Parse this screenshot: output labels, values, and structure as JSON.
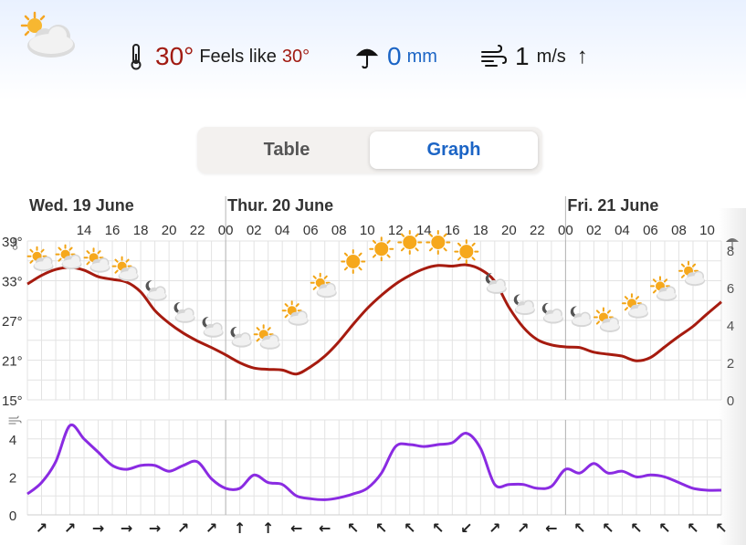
{
  "current": {
    "weather_icon": "sun-behind-cloud-icon",
    "temperature": "30°",
    "feels_like_label": "Feels like",
    "feels_like_value": "30°",
    "precipitation_value": "0",
    "precipitation_unit": "mm",
    "wind_value": "1",
    "wind_unit": "m/s",
    "wind_arrow": "↑"
  },
  "tabs": [
    {
      "label": "Table",
      "selected": false
    },
    {
      "label": "Graph",
      "selected": true
    }
  ],
  "colors": {
    "temp_line": "#a61b0f",
    "wind_line": "#8a2be2",
    "grid": "#e3e3e3",
    "day_divider": "#b5b5b5",
    "accent": "#1b64c5",
    "warm_text": "#a11b12"
  },
  "chart_data": [
    {
      "type": "line",
      "name": "temperature-chart",
      "day_labels": [
        {
          "label": "Wed. 19 June",
          "start_hour": 10
        },
        {
          "label": "Thur. 20 June",
          "start_hour": 24
        },
        {
          "label": "Fri. 21 June",
          "start_hour": 48
        }
      ],
      "hour_tick_labels": [
        "14",
        "16",
        "18",
        "20",
        "22",
        "00",
        "02",
        "04",
        "06",
        "08",
        "10",
        "12",
        "14",
        "16",
        "18",
        "20",
        "22",
        "00",
        "02",
        "04",
        "06",
        "08",
        "10"
      ],
      "hour_ticks": [
        14,
        16,
        18,
        20,
        22,
        24,
        26,
        28,
        30,
        32,
        34,
        36,
        38,
        40,
        42,
        44,
        46,
        48,
        50,
        52,
        54,
        56,
        58
      ],
      "x_range_hours": [
        10,
        59
      ],
      "y_axis_left_labels": [
        "39°",
        "33°",
        "27°",
        "21°",
        "15°"
      ],
      "y_axis_left_values": [
        39,
        33,
        27,
        21,
        15
      ],
      "y_axis_right_labels": [
        "8",
        "6",
        "4",
        "2",
        "0"
      ],
      "y_axis_right_values": [
        8,
        6,
        4,
        2,
        0
      ],
      "y_axis_right_unit_icon": "umbrella-icon",
      "y_axis_left_unit_icon": "thermometer-icon",
      "temperature_series": {
        "x": [
          10,
          11,
          12,
          13,
          14,
          15,
          16,
          17,
          18,
          19,
          20,
          21,
          22,
          23,
          24,
          25,
          26,
          27,
          28,
          29,
          30,
          31,
          32,
          33,
          34,
          35,
          36,
          37,
          38,
          39,
          40,
          41,
          42,
          43,
          44,
          45,
          46,
          47,
          48,
          49,
          50,
          51,
          52,
          53,
          54,
          55,
          56,
          57,
          58,
          59
        ],
        "y": [
          32.5,
          33.8,
          34.7,
          35.0,
          34.6,
          33.6,
          33.2,
          32.8,
          31.3,
          28.5,
          26.6,
          25.1,
          23.9,
          22.9,
          21.8,
          20.6,
          19.8,
          19.6,
          19.5,
          18.9,
          20.0,
          21.6,
          23.8,
          26.4,
          28.8,
          30.8,
          32.5,
          33.8,
          34.8,
          35.3,
          35.2,
          35.4,
          34.7,
          32.9,
          29.0,
          26.0,
          24.1,
          23.3,
          23.0,
          22.9,
          22.2,
          21.9,
          21.6,
          20.9,
          21.4,
          23.0,
          24.6,
          26.1,
          28.0,
          29.8
        ]
      },
      "weather_icons": [
        {
          "hour": 11,
          "icon": "sun-behind-cloud-icon",
          "temp": 36.0
        },
        {
          "hour": 13,
          "icon": "sun-behind-cloud-icon",
          "temp": 36.3
        },
        {
          "hour": 15,
          "icon": "sun-behind-cloud-icon",
          "temp": 35.8
        },
        {
          "hour": 17,
          "icon": "sun-behind-cloud-icon",
          "temp": 34.5
        },
        {
          "hour": 19,
          "icon": "moon-behind-cloud-icon",
          "temp": 31.5
        },
        {
          "hour": 21,
          "icon": "moon-behind-cloud-icon",
          "temp": 28.2
        },
        {
          "hour": 23,
          "icon": "moon-behind-cloud-icon",
          "temp": 26.0
        },
        {
          "hour": 25,
          "icon": "moon-behind-cloud-icon",
          "temp": 24.5
        },
        {
          "hour": 27,
          "icon": "sun-behind-cloud-icon",
          "temp": 24.2
        },
        {
          "hour": 29,
          "icon": "sun-behind-cloud-icon",
          "temp": 27.8
        },
        {
          "hour": 31,
          "icon": "sun-behind-cloud-icon",
          "temp": 32.0
        },
        {
          "hour": 33,
          "icon": "sun-icon",
          "temp": 35.9
        },
        {
          "hour": 35,
          "icon": "sun-icon",
          "temp": 37.8
        },
        {
          "hour": 37,
          "icon": "sun-icon",
          "temp": 38.8
        },
        {
          "hour": 39,
          "icon": "sun-icon",
          "temp": 38.8
        },
        {
          "hour": 41,
          "icon": "sun-icon",
          "temp": 37.4
        },
        {
          "hour": 43,
          "icon": "moon-behind-cloud-icon",
          "temp": 32.6
        },
        {
          "hour": 45,
          "icon": "moon-behind-cloud-icon",
          "temp": 29.4
        },
        {
          "hour": 47,
          "icon": "moon-behind-cloud-icon",
          "temp": 28.1
        },
        {
          "hour": 49,
          "icon": "moon-behind-cloud-icon",
          "temp": 27.6
        },
        {
          "hour": 51,
          "icon": "sun-behind-cloud-icon",
          "temp": 26.8
        },
        {
          "hour": 53,
          "icon": "sun-behind-cloud-icon",
          "temp": 28.9
        },
        {
          "hour": 55,
          "icon": "sun-behind-cloud-icon",
          "temp": 31.5
        },
        {
          "hour": 57,
          "icon": "sun-behind-cloud-icon",
          "temp": 33.8
        }
      ],
      "grid": true
    },
    {
      "type": "line",
      "name": "wind-chart",
      "y_axis_left_labels": [
        "4",
        "2",
        "0"
      ],
      "y_axis_left_values": [
        4,
        2,
        0
      ],
      "y_axis_left_unit_icon": "wind-icon",
      "ylim": [
        0,
        5
      ],
      "wind_series": {
        "x": [
          10,
          11,
          12,
          13,
          14,
          15,
          16,
          17,
          18,
          19,
          20,
          21,
          22,
          23,
          24,
          25,
          26,
          27,
          28,
          29,
          30,
          31,
          32,
          33,
          34,
          35,
          36,
          37,
          38,
          39,
          40,
          41,
          42,
          43,
          44,
          45,
          46,
          47,
          48,
          49,
          50,
          51,
          52,
          53,
          54,
          55,
          56,
          57,
          58,
          59
        ],
        "y": [
          1.1,
          1.7,
          2.8,
          4.7,
          4.0,
          3.3,
          2.6,
          2.4,
          2.6,
          2.6,
          2.3,
          2.6,
          2.8,
          1.9,
          1.4,
          1.4,
          2.1,
          1.7,
          1.6,
          1.0,
          0.85,
          0.8,
          0.9,
          1.1,
          1.4,
          2.2,
          3.6,
          3.7,
          3.6,
          3.7,
          3.8,
          4.3,
          3.5,
          1.6,
          1.6,
          1.6,
          1.4,
          1.5,
          2.4,
          2.2,
          2.7,
          2.2,
          2.3,
          2.0,
          2.1,
          2.0,
          1.7,
          1.4,
          1.3,
          1.3
        ]
      },
      "wind_arrows": {
        "hours": [
          11,
          13,
          15,
          17,
          19,
          21,
          23,
          25,
          27,
          29,
          31,
          33,
          35,
          37,
          39,
          41,
          43,
          45,
          47,
          49,
          51,
          53,
          55,
          57,
          59
        ],
        "glyphs": [
          "↗",
          "↗",
          "→",
          "→",
          "→",
          "↗",
          "↗",
          "↑",
          "↑",
          "←",
          "←",
          "↖",
          "↖",
          "↖",
          "↖",
          "↙",
          "↗",
          "↗",
          "←",
          "↖",
          "↖",
          "↖",
          "↖",
          "↖",
          "↖"
        ]
      },
      "grid": true
    }
  ]
}
